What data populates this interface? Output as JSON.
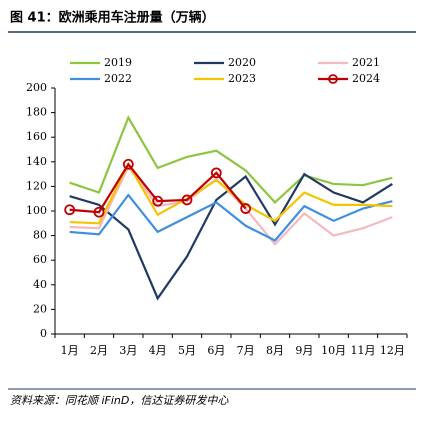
{
  "chart_data": {
    "type": "line",
    "title": "图 41：欧洲乘用车注册量（万辆）",
    "source": "资料来源：同花顺 iFinD，信达证券研发中心",
    "categories": [
      "1月",
      "2月",
      "3月",
      "4月",
      "5月",
      "6月",
      "7月",
      "8月",
      "9月",
      "10月",
      "11月",
      "12月"
    ],
    "ylim": [
      0,
      200
    ],
    "yticks": [
      0,
      20,
      40,
      60,
      80,
      100,
      120,
      140,
      160,
      180,
      200
    ],
    "series": [
      {
        "name": "2019",
        "color": "#8cc63f",
        "values": [
          123,
          115,
          176,
          135,
          144,
          149,
          133,
          107,
          129,
          122,
          121,
          127
        ]
      },
      {
        "name": "2020",
        "color": "#1f3864",
        "values": [
          112,
          105,
          85,
          29,
          63,
          109,
          128,
          89,
          130,
          115,
          107,
          122
        ]
      },
      {
        "name": "2021",
        "color": "#f4b8c0",
        "values": [
          87,
          86,
          136,
          104,
          108,
          126,
          102,
          73,
          98,
          80,
          86,
          95
        ]
      },
      {
        "name": "2022",
        "color": "#3f8ee0",
        "values": [
          83,
          81,
          113,
          83,
          95,
          107,
          88,
          76,
          104,
          92,
          102,
          108
        ]
      },
      {
        "name": "2023",
        "color": "#f5c400",
        "values": [
          91,
          90,
          138,
          97,
          110,
          125,
          105,
          92,
          115,
          105,
          105,
          104
        ]
      },
      {
        "name": "2024",
        "color": "#c00000",
        "values": [
          101,
          99,
          138,
          108,
          109,
          131,
          102,
          null,
          null,
          null,
          null,
          null
        ],
        "markers": true
      }
    ]
  }
}
